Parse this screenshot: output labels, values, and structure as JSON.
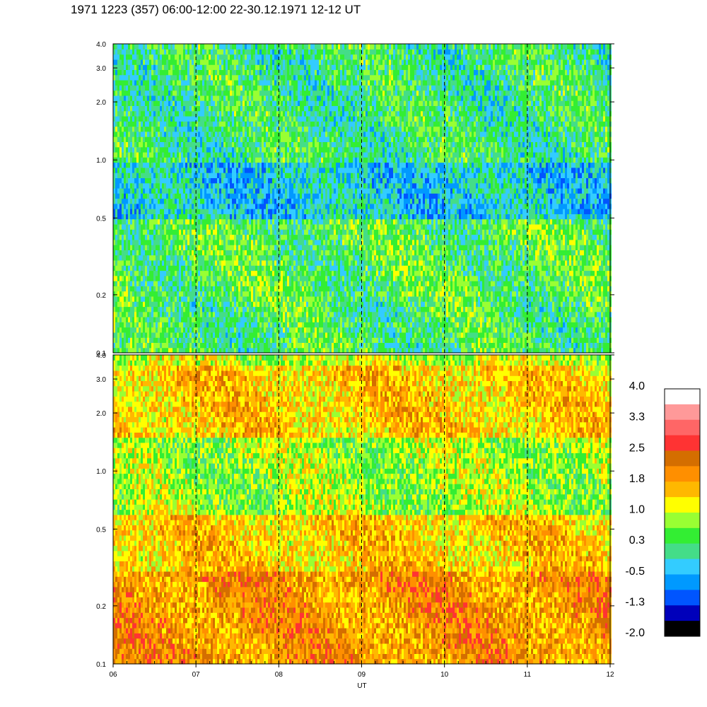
{
  "title": "1971 1223 (357) 06:00-12:00 22-30.12.1971  12-12 UT",
  "chart_data": [
    {
      "type": "heatmap",
      "panel": "top",
      "xlabel": "",
      "ylabel": "",
      "x_range": [
        6,
        12
      ],
      "y_range": [
        0.1,
        4.0
      ],
      "y_scale": "log",
      "yticks": [
        "0.1",
        "0.2",
        "0.5",
        "1.0",
        "2.0",
        "3.0",
        "4.0"
      ],
      "ytick_values": [
        0.1,
        0.2,
        0.5,
        1.0,
        2.0,
        3.0,
        4.0
      ],
      "dashed_hour_lines": [
        7,
        8,
        9,
        10,
        11
      ],
      "dominant_value_by_frequency_band": [
        {
          "band": "0.1-0.2",
          "value": 0.3
        },
        {
          "band": "0.2-0.5",
          "value": 0.4
        },
        {
          "band": "0.5-1.0",
          "value": -0.3
        },
        {
          "band": "1.0-4.0",
          "value": 0.2
        }
      ]
    },
    {
      "type": "heatmap",
      "panel": "bottom",
      "xlabel": "UT",
      "ylabel": "",
      "x_range": [
        6,
        12
      ],
      "xticks": [
        "06",
        "07",
        "08",
        "09",
        "10",
        "11",
        "12"
      ],
      "y_range": [
        0.1,
        4.0
      ],
      "y_scale": "log",
      "yticks": [
        "0.1",
        "0.2",
        "0.5",
        "1.0",
        "2.0",
        "3.0",
        "4.0"
      ],
      "ytick_values": [
        0.1,
        0.2,
        0.5,
        1.0,
        2.0,
        3.0,
        4.0
      ],
      "dashed_hour_lines": [
        7,
        8,
        9,
        10,
        11
      ],
      "dominant_value_by_frequency_band": [
        {
          "band": "0.1-0.3",
          "value": 1.9
        },
        {
          "band": "0.3-0.6",
          "value": 1.5
        },
        {
          "band": "0.6-1.5",
          "value": 0.8
        },
        {
          "band": "1.5-3.5",
          "value": 1.5
        },
        {
          "band": "3.5-4.0",
          "value": 1.0
        }
      ]
    }
  ],
  "colorbar": {
    "labels": [
      "4.0",
      "3.3",
      "2.5",
      "1.8",
      "1.0",
      "0.3",
      "-0.5",
      "-1.3",
      "-2.0"
    ],
    "colors": [
      "#ffffff",
      "#ff9999",
      "#ff6666",
      "#ff3333",
      "#d46e00",
      "#ff8f00",
      "#ffb800",
      "#ffff00",
      "#99ff33",
      "#33ee33",
      "#44dd88",
      "#33ccff",
      "#0099ff",
      "#0055ff",
      "#0000bb",
      "#000000"
    ]
  }
}
